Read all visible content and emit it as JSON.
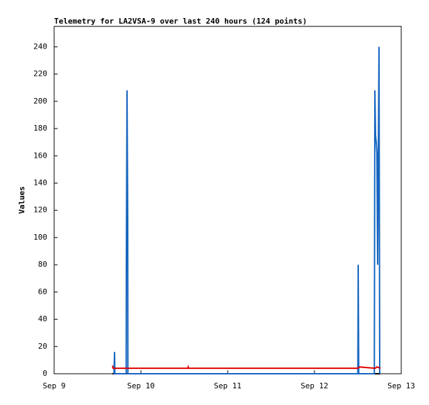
{
  "chart_data": {
    "type": "line",
    "title": "Telemetry for LA2VSA-9 over last 240 hours (124 points)",
    "y_label": "Values",
    "xlim": [
      0,
      4
    ],
    "xticks": [
      {
        "value": 0,
        "label": "Sep 9"
      },
      {
        "value": 1,
        "label": "Sep 10"
      },
      {
        "value": 2,
        "label": "Sep 11"
      },
      {
        "value": 3,
        "label": "Sep 12"
      },
      {
        "value": 4,
        "label": "Sep 13"
      }
    ],
    "ylim": [
      0,
      255
    ],
    "yticks": [
      0,
      20,
      40,
      60,
      80,
      100,
      120,
      140,
      160,
      180,
      200,
      220,
      240
    ],
    "series": [
      {
        "color": "#000000",
        "x": [
          0.672,
          3.76
        ],
        "values": [
          0,
          0
        ]
      },
      {
        "color": "#1565c0",
        "x": [
          0.69,
          0.696,
          0.7,
          0.83,
          0.832,
          0.84,
          0.848,
          0.85,
          3.5,
          3.504,
          3.51,
          3.69,
          3.696,
          3.704,
          3.712,
          3.72,
          3.728,
          3.744,
          3.752
        ],
        "values": [
          0,
          16,
          0,
          0,
          80,
          208,
          112,
          0,
          0,
          80,
          0,
          0,
          208,
          175,
          170,
          162,
          80,
          240,
          0
        ]
      },
      {
        "color": "#e00000",
        "x": [
          0.672,
          0.68,
          1.54,
          1.545,
          1.55,
          3.5,
          3.52,
          3.6,
          3.7,
          3.72,
          3.76
        ],
        "values": [
          6,
          4,
          4,
          5,
          4,
          4,
          5,
          4.5,
          4,
          5,
          4
        ]
      }
    ]
  }
}
